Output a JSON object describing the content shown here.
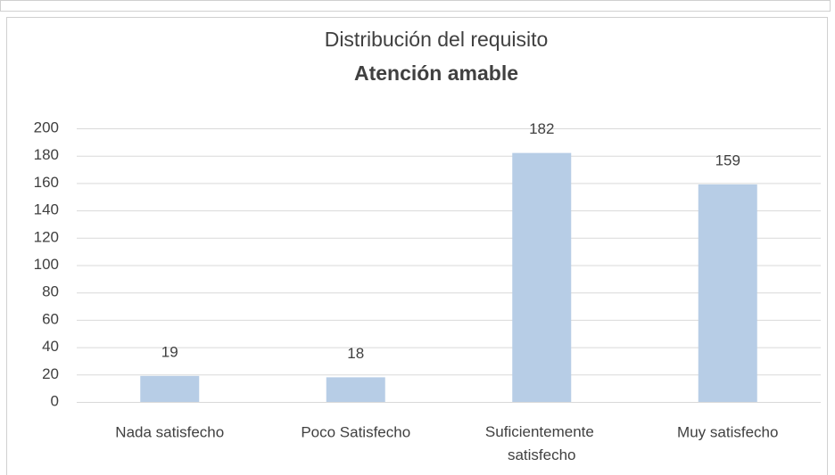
{
  "chart_data": {
    "type": "bar",
    "title": "Distribución del requisito",
    "subtitle": "Atención amable",
    "categories": [
      "Nada satisfecho",
      "Poco Satisfecho",
      "Suficientemente satisfecho",
      "Muy satisfecho"
    ],
    "values": [
      19,
      18,
      182,
      159
    ],
    "color": "#b7cde6",
    "ylim": [
      0,
      200
    ],
    "yticks": [
      0,
      20,
      40,
      60,
      80,
      100,
      120,
      140,
      160,
      180,
      200
    ],
    "grid": true
  }
}
